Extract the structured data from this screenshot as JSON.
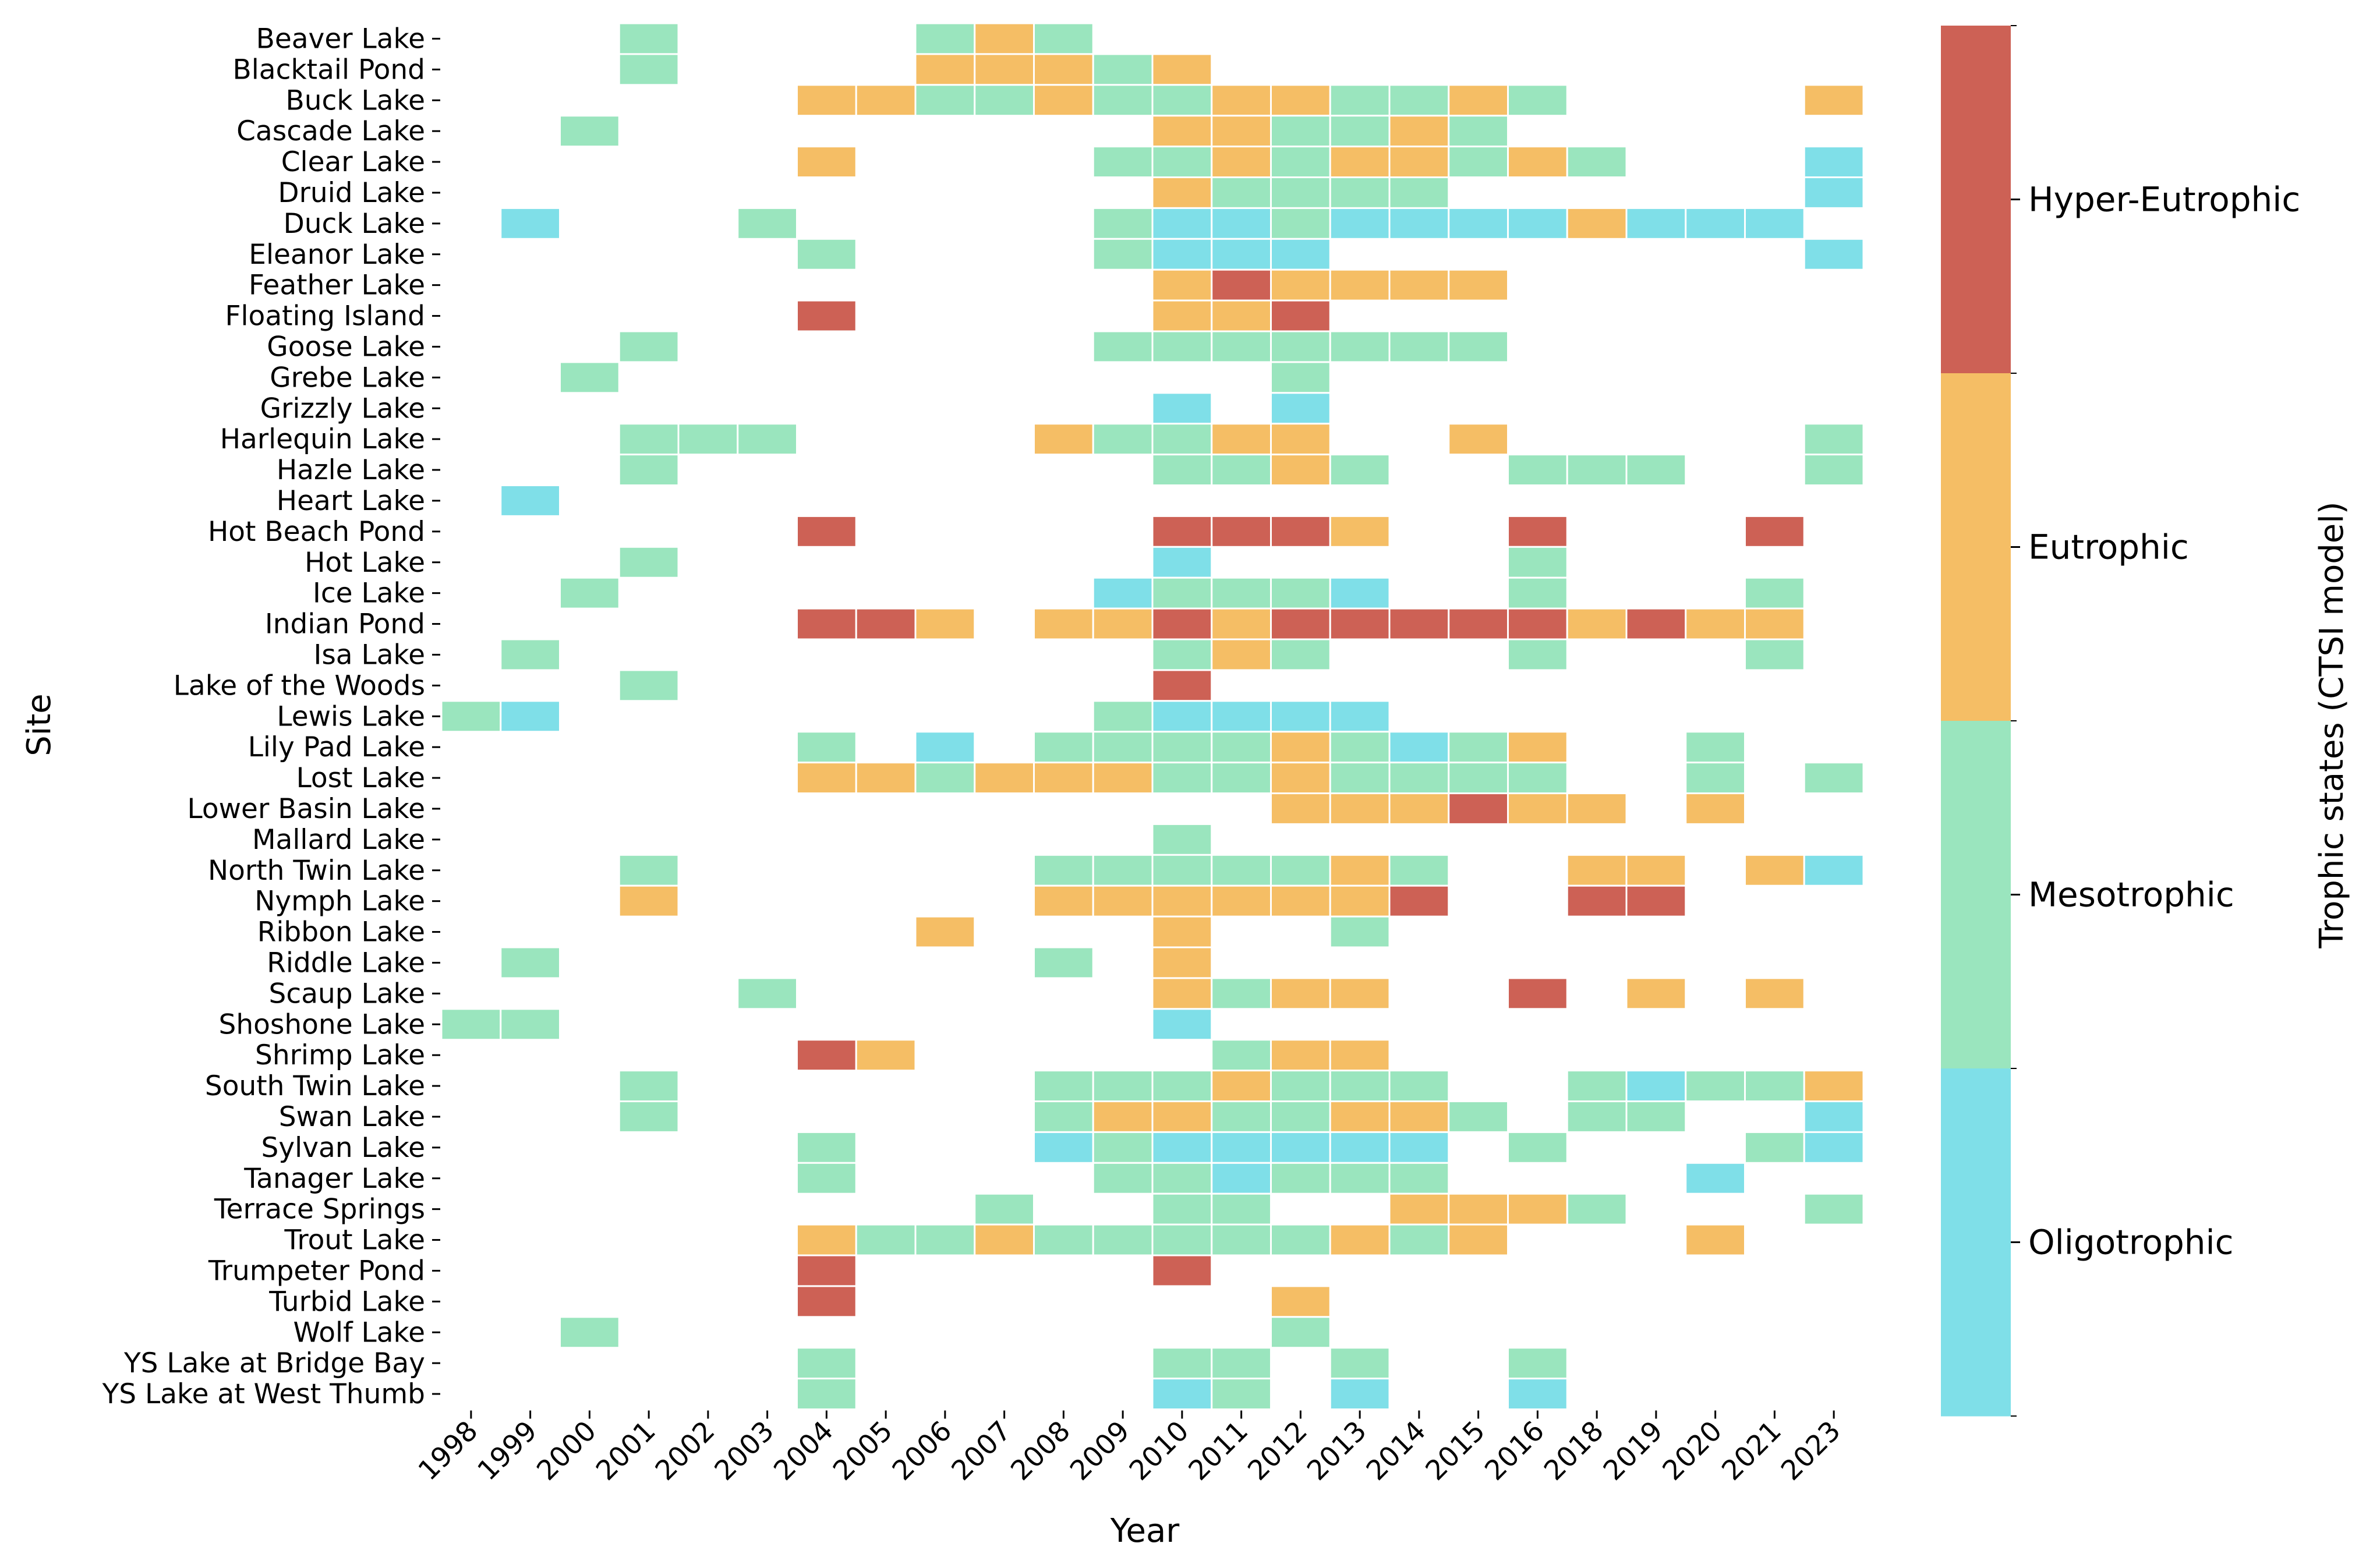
{
  "chart_data": {
    "type": "heatmap",
    "xlabel": "Year",
    "ylabel": "Site",
    "years": [
      "1998",
      "1999",
      "2000",
      "2001",
      "2002",
      "2003",
      "2004",
      "2005",
      "2006",
      "2007",
      "2008",
      "2009",
      "2010",
      "2011",
      "2012",
      "2013",
      "2014",
      "2015",
      "2016",
      "2018",
      "2019",
      "2020",
      "2021",
      "2023"
    ],
    "sites": [
      "Beaver Lake",
      "Blacktail Pond",
      "Buck Lake",
      "Cascade Lake",
      "Clear Lake",
      "Druid Lake",
      "Duck Lake",
      "Eleanor Lake",
      "Feather Lake",
      "Floating Island",
      "Goose Lake",
      "Grebe Lake",
      "Grizzly Lake",
      "Harlequin Lake",
      "Hazle Lake",
      "Heart Lake",
      "Hot Beach Pond",
      "Hot Lake",
      "Ice Lake",
      "Indian Pond",
      "Isa Lake",
      "Lake of the Woods",
      "Lewis Lake",
      "Lily Pad Lake",
      "Lost Lake",
      "Lower Basin Lake",
      "Mallard Lake",
      "North Twin Lake",
      "Nymph Lake",
      "Ribbon Lake",
      "Riddle Lake",
      "Scaup Lake",
      "Shoshone Lake",
      "Shrimp Lake",
      "South Twin Lake",
      "Swan Lake",
      "Sylvan Lake",
      "Tanager Lake ",
      "Terrace Springs",
      "Trout Lake",
      "Trumpeter Pond ",
      "Turbid Lake",
      "Wolf Lake",
      "YS Lake at Bridge Bay",
      "YS Lake at West Thumb"
    ],
    "legend_title": "Trophic states (CTSI model)",
    "categories": [
      {
        "code": "H",
        "name": "Hyper-Eutrophic",
        "color": "#cd6155"
      },
      {
        "code": "E",
        "name": "Eutrophic",
        "color": "#f5be65"
      },
      {
        "code": "M",
        "name": "Mesotrophic",
        "color": "#9ae5be"
      },
      {
        "code": "O",
        "name": "Oligotrophic",
        "color": "#7fdfe8"
      }
    ],
    "cells": [
      "...M....MEM.............",
      "...M....EEEME...........",
      "......EEMMEMMEEMMEM....E",
      "..M.........EEMMEM......",
      "......E....MMEMEEMEM...O",
      "............EMMMM......O",
      ".O...M.....MOOMOOOOEOOO.",
      "......M....MOOO........O",
      "............EHEEEE......",
      "......H.....EEH.........",
      "...M.......MMMMMMM......",
      "..M...........M.........",
      "............O.O.........",
      "...MMM....EMMEE..E.....M",
      "...M........MMEM..MMM..M",
      ".O......................",
      "......H.....HHHE..H...H.",
      "...M........O.....M.....",
      "..M........OMMMO..M...M.",
      "......HHE.EEHEHHHHHEHEE.",
      ".M..........MEM...M...M.",
      "...M........H...........",
      "MO.........MOOOO........",
      "......M.O.MMMMEMOME..M..",
      "......EEMEEEMMEMMMM..M.M",
      "..............EEEHEE.E..",
      "............M...........",
      "...M......MMMMMEM..EE.EO",
      "...E......EEEEEEH..HH...",
      "........E...E..M........",
      ".M........M.E...........",
      ".....M......EMEE..H.E.E.",
      "MM..........O...........",
      "......HE.....MEE........",
      "...M......MMMEMMM..MOMME",
      "...M......MEEMMEEM.MM..O",
      "......M...OMOOOOO.M...MO",
      "......M....MMOMMM....O..",
      ".........M..MM..EEEM...M",
      "......EMMEMMMMMEME...E..",
      "......H.....H...........",
      "......H.......E.........",
      "..M...........M.........",
      "......M.....MM.M..M.....",
      "......M.....OM.O..O....."
    ]
  }
}
